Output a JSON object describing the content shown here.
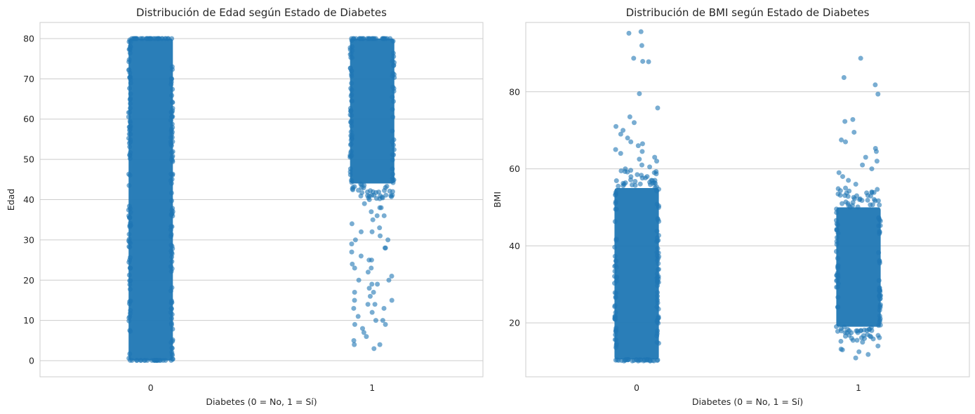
{
  "figure": {
    "background": "#ffffff",
    "point_color": "#1f77b4",
    "grid_color": "#cccccc",
    "spine_color": "#cccccc"
  },
  "chart_data": [
    {
      "type": "scatter",
      "subtype": "strip",
      "title": "Distribución de Edad según Estado de Diabetes",
      "xlabel": "Diabetes (0 = No, 1 = Sí)",
      "ylabel": "Edad",
      "categories": [
        "0",
        "1"
      ],
      "ylim": [
        -4,
        84
      ],
      "yticks": [
        0,
        10,
        20,
        30,
        40,
        50,
        60,
        70,
        80
      ],
      "grid": "y",
      "point_color": "#1f77b4",
      "point_alpha": 0.6,
      "jitter": 0.1,
      "groups": [
        {
          "category": "0",
          "range": [
            0.08,
            80
          ],
          "dense_bands": [
            [
              0.08,
              80
            ]
          ],
          "sparse_values": []
        },
        {
          "category": "1",
          "range": [
            3,
            80
          ],
          "dense_bands": [
            [
              44,
              80
            ]
          ],
          "sparse_values": [
            3,
            4,
            4,
            5,
            6,
            7,
            8,
            9,
            9,
            10,
            10,
            11,
            12,
            13,
            13,
            14,
            14,
            15,
            15,
            16,
            17,
            17,
            18,
            19,
            19,
            20,
            20,
            21,
            22,
            23,
            23,
            24,
            25,
            25,
            26,
            27,
            28,
            28,
            29,
            30,
            30,
            31,
            32,
            32,
            33,
            34,
            35,
            36,
            36,
            37,
            38,
            38,
            39,
            40,
            41,
            42,
            43
          ]
        }
      ]
    },
    {
      "type": "scatter",
      "subtype": "strip",
      "title": "Distribución de BMI según Estado de Diabetes",
      "xlabel": "Diabetes (0 = No, 1 = Sí)",
      "ylabel": "BMI",
      "categories": [
        "0",
        "1"
      ],
      "ylim": [
        6,
        98
      ],
      "yticks": [
        20,
        40,
        60,
        80
      ],
      "grid": "y",
      "point_color": "#1f77b4",
      "point_alpha": 0.6,
      "jitter": 0.1,
      "groups": [
        {
          "category": "0",
          "range": [
            10.1,
            95.7
          ],
          "dense_bands": [
            [
              10.5,
              55
            ]
          ],
          "sparse_values": [
            55.5,
            56,
            57,
            58,
            58.5,
            59,
            60,
            60.5,
            61,
            62,
            62.5,
            63,
            64,
            64.5,
            65,
            66,
            66.5,
            67,
            68,
            69,
            70,
            71,
            72,
            73.5,
            75.8,
            79.5,
            87.8,
            87.9,
            88.7,
            92,
            95.2,
            95.6
          ]
        },
        {
          "category": "1",
          "range": [
            10.9,
            88.7
          ],
          "dense_bands": [
            [
              19,
              50
            ]
          ],
          "sparse_values": [
            10.9,
            11.8,
            12.5,
            13,
            13.2,
            14,
            15,
            15.5,
            16,
            17,
            17.5,
            18,
            18.5,
            50.5,
            51,
            52,
            53,
            54,
            55,
            56,
            57,
            58,
            59,
            60,
            61,
            62,
            63,
            64.5,
            65.3,
            67,
            67.5,
            69.5,
            72.3,
            72.8,
            79.4,
            81.8,
            83.7,
            88.7
          ]
        }
      ]
    }
  ]
}
